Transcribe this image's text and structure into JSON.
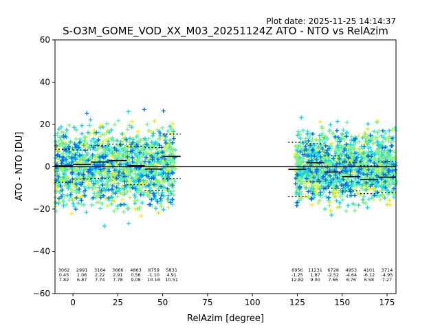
{
  "plot_date": "Plot date: 2025-11-25 14:14:37",
  "chart_data": {
    "type": "scatter",
    "title": "S-O3M_GOME_VOD_XX_M03_20251124Z ATO - NTO vs RelAzim",
    "xlabel": "RelAzim [degree]",
    "ylabel": "ATO - NTO [DU]",
    "xlim": [
      -10,
      180
    ],
    "ylim": [
      -60,
      60
    ],
    "xticks": [
      0,
      25,
      50,
      75,
      100,
      125,
      150,
      175
    ],
    "yticks": [
      -60,
      -40,
      -20,
      0,
      20,
      40,
      60
    ],
    "grid": false,
    "zero_line": 0,
    "colors": {
      "dark_blue": "#0010e0",
      "blue": "#0070f0",
      "cyan": "#10d0f0",
      "aqua": "#30f0d0",
      "green": "#80f090",
      "lime": "#c0f040",
      "yellow": "#f8f000"
    },
    "scatter_clusters": [
      {
        "x": [
          -10,
          57
        ],
        "y_center": 0,
        "y_spread": 20
      },
      {
        "x": [
          124,
          180
        ],
        "y_center": 0,
        "y_spread": 18
      }
    ],
    "bins": [
      {
        "x_start": -10,
        "x_end": 0,
        "count": "3062",
        "mean": "0.45",
        "std": "7.82",
        "mean_val": 0.45,
        "std_val": 7.82
      },
      {
        "x_start": 0,
        "x_end": 10,
        "count": "2991",
        "mean": "1.06",
        "std": "6.87",
        "mean_val": 1.06,
        "std_val": 6.87
      },
      {
        "x_start": 10,
        "x_end": 20,
        "count": "3164",
        "mean": "2.22",
        "std": "7.74",
        "mean_val": 2.22,
        "std_val": 7.74
      },
      {
        "x_start": 20,
        "x_end": 30,
        "count": "3666",
        "mean": "2.91",
        "std": "7.78",
        "mean_val": 2.91,
        "std_val": 7.78
      },
      {
        "x_start": 30,
        "x_end": 40,
        "count": "4863",
        "mean": "0.56",
        "std": "9.08",
        "mean_val": 0.56,
        "std_val": 9.08
      },
      {
        "x_start": 40,
        "x_end": 50,
        "count": "8759",
        "mean": "-1.10",
        "std": "10.18",
        "mean_val": -1.1,
        "std_val": 10.18
      },
      {
        "x_start": 50,
        "x_end": 60,
        "count": "5831",
        "mean": "4.91",
        "std": "10.51",
        "mean_val": 4.91,
        "std_val": 10.51
      },
      {
        "x_start": 120,
        "x_end": 130,
        "count": "6956",
        "mean": "-1.25",
        "std": "12.82",
        "mean_val": -1.25,
        "std_val": 12.82
      },
      {
        "x_start": 130,
        "x_end": 140,
        "count": "11231",
        "mean": "1.87",
        "std": "9.00",
        "mean_val": 1.87,
        "std_val": 9.0
      },
      {
        "x_start": 140,
        "x_end": 150,
        "count": "6728",
        "mean": "-2.52",
        "std": "7.66",
        "mean_val": -2.52,
        "std_val": 7.66
      },
      {
        "x_start": 150,
        "x_end": 160,
        "count": "4953",
        "mean": "-4.64",
        "std": "6.76",
        "mean_val": -4.64,
        "std_val": 6.76
      },
      {
        "x_start": 160,
        "x_end": 170,
        "count": "4101",
        "mean": "-6.12",
        "std": "6.58",
        "mean_val": -6.12,
        "std_val": 6.58
      },
      {
        "x_start": 170,
        "x_end": 180,
        "count": "3714",
        "mean": "-4.95",
        "std": "7.27",
        "mean_val": -4.95,
        "std_val": 7.27
      }
    ]
  }
}
